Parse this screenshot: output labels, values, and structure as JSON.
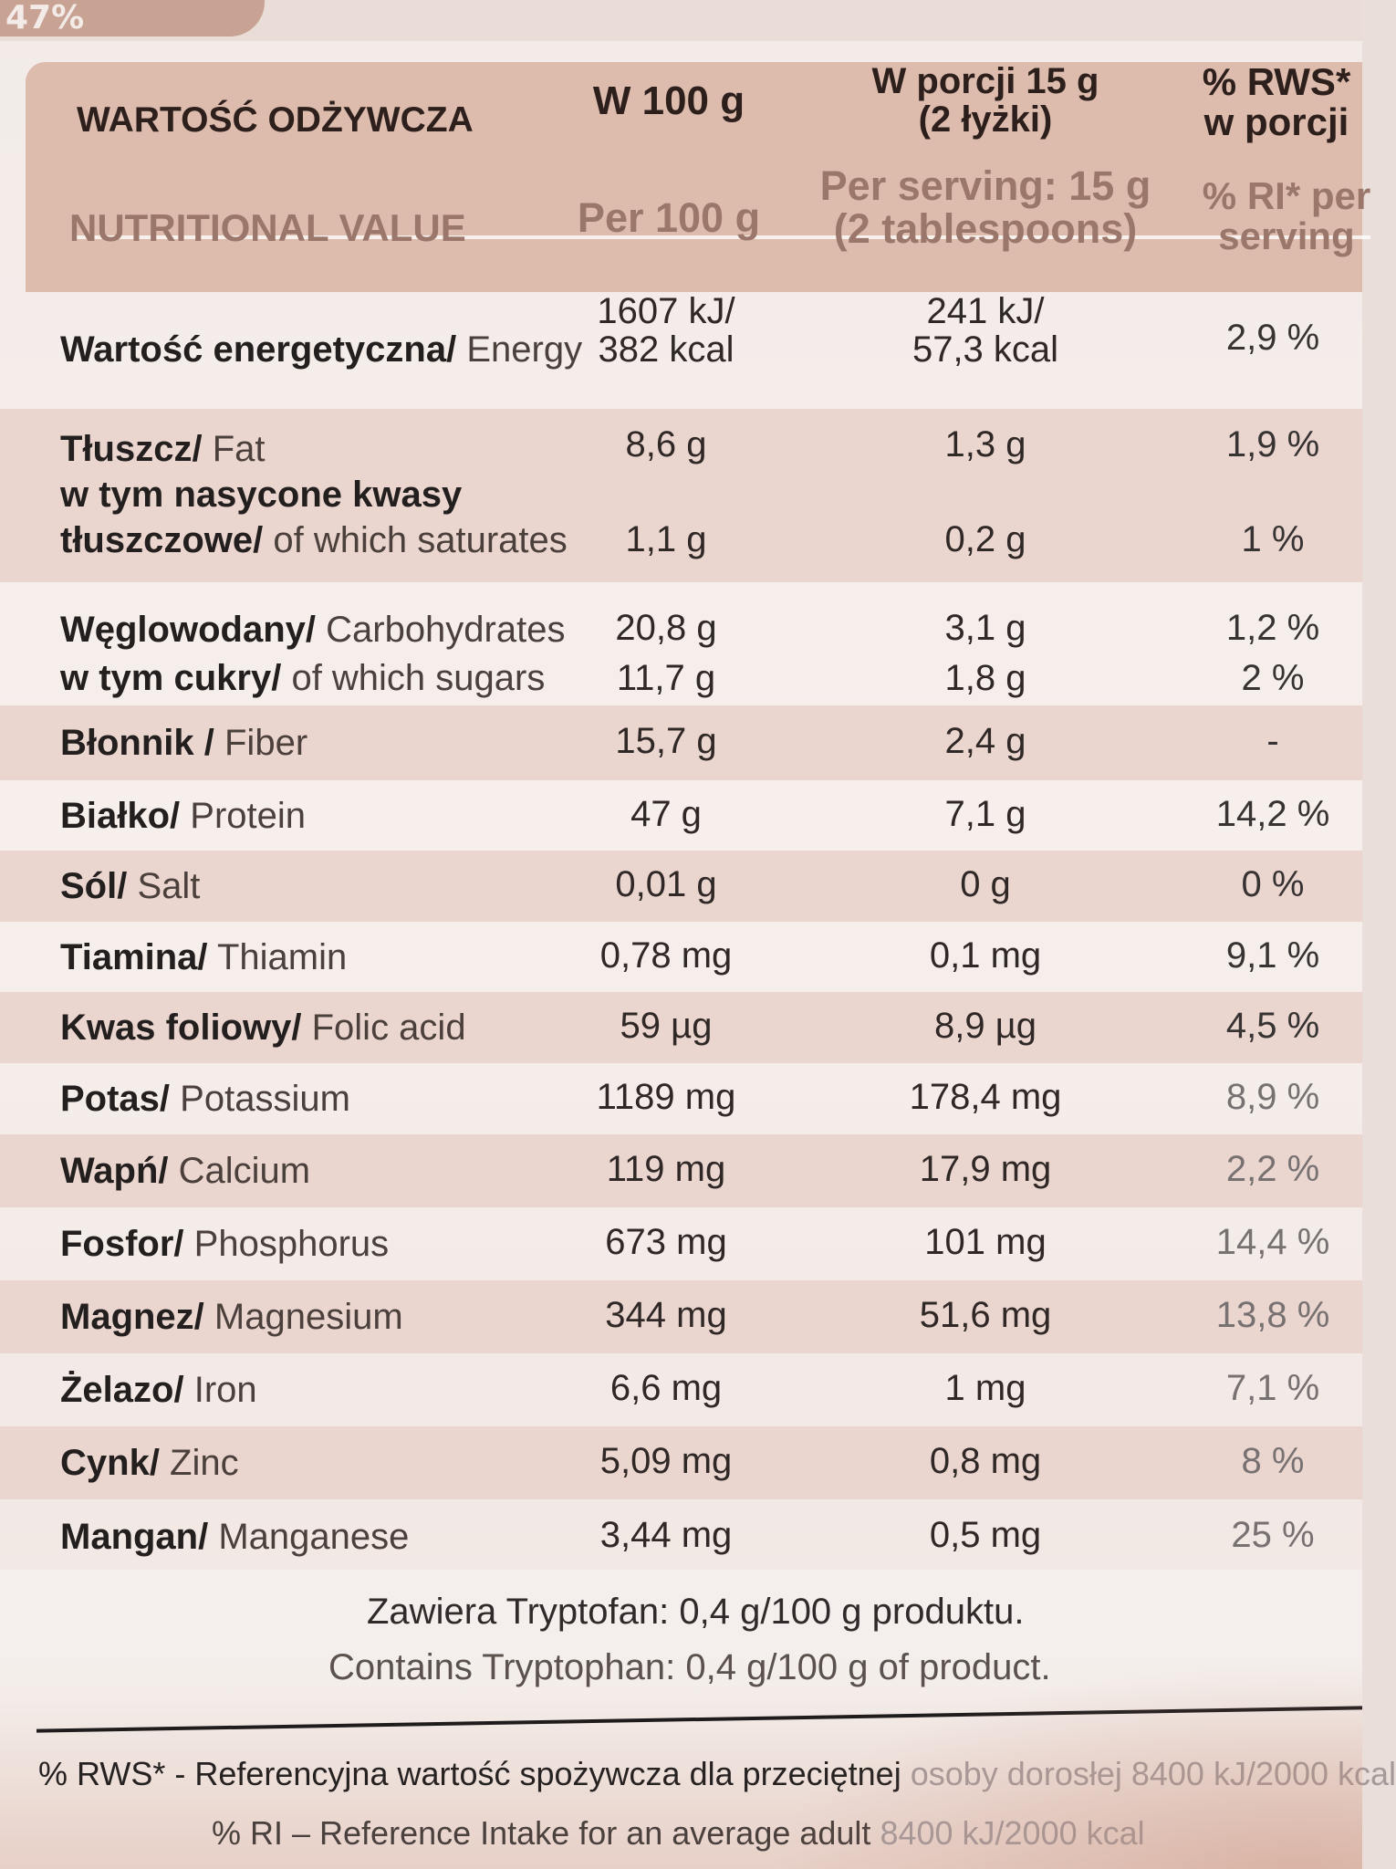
{
  "page": {
    "top_fragment": "47%"
  },
  "table": {
    "headers": {
      "pl": {
        "label": "WARTOŚĆ ODŻYWCZA",
        "per100": "W 100 g",
        "serving_line1": "W porcji 15 g",
        "serving_line2": "(2 łyżki)",
        "ri_line1": "% RWS*",
        "ri_line2": "w porcji"
      },
      "en": {
        "label": "NUTRITIONAL VALUE",
        "per100": "Per 100 g",
        "serving_line1": "Per serving: 15 g",
        "serving_line2": "(2 tablespoons)",
        "ri_line1": "% RI* per",
        "ri_line2": "serving"
      }
    },
    "rows": [
      {
        "label_pl": "Wartość energetyczna/",
        "label_en": " Energy",
        "per100_line1": "1607 kJ/",
        "per100_line2": "382 kcal",
        "serving_line1": "241 kJ/",
        "serving_line2": "57,3 kcal",
        "ri": "2,9 %"
      },
      {
        "label_pl": "Tłuszcz/",
        "label_en": " Fat",
        "per100": "8,6 g",
        "serving": "1,3 g",
        "ri": "1,9 %"
      },
      {
        "label_pl": "w tym nasycone kwasy",
        "label_en": "",
        "per100": "",
        "serving": "",
        "ri": ""
      },
      {
        "label_pl": "tłuszczowe/",
        "label_en": " of which saturates",
        "per100": "1,1 g",
        "serving": "0,2 g",
        "ri": "1 %"
      },
      {
        "label_pl": "Węglowodany/",
        "label_en": " Carbohydrates",
        "per100": "20,8 g",
        "serving": "3,1 g",
        "ri": "1,2 %"
      },
      {
        "label_pl": "w tym cukry/",
        "label_en": " of which sugars",
        "per100": "11,7 g",
        "serving": "1,8 g",
        "ri": "2 %"
      },
      {
        "label_pl": "Błonnik / ",
        "label_en": "Fiber",
        "per100": "15,7 g",
        "serving": "2,4 g",
        "ri": "-"
      },
      {
        "label_pl": "Białko/",
        "label_en": " Protein",
        "per100": "47 g",
        "serving": "7,1 g",
        "ri": "14,2 %"
      },
      {
        "label_pl": "Sól/",
        "label_en": " Salt",
        "per100": "0,01 g",
        "serving": "0 g",
        "ri": "0 %"
      },
      {
        "label_pl": "Tiamina/",
        "label_en": " Thiamin",
        "per100": "0,78 mg",
        "serving": "0,1 mg",
        "ri": "9,1 %"
      },
      {
        "label_pl": "Kwas foliowy/",
        "label_en": " Folic acid",
        "per100": "59 µg",
        "serving": "8,9 µg",
        "ri": "4,5 %"
      },
      {
        "label_pl": "Potas/",
        "label_en": " Potassium",
        "per100": "1189 mg",
        "serving": "178,4 mg",
        "ri": "8,9 %"
      },
      {
        "label_pl": "Wapń/",
        "label_en": " Calcium",
        "per100": "119 mg",
        "serving": "17,9 mg",
        "ri": "2,2 %"
      },
      {
        "label_pl": "Fosfor/",
        "label_en": " Phosphorus",
        "per100": "673 mg",
        "serving": "101 mg",
        "ri": "14,4 %"
      },
      {
        "label_pl": "Magnez/",
        "label_en": " Magnesium",
        "per100": "344 mg",
        "serving": "51,6 mg",
        "ri": "13,8 %"
      },
      {
        "label_pl": "Żelazo/",
        "label_en": " Iron",
        "per100": "6,6 mg",
        "serving": "1 mg",
        "ri": "7,1 %"
      },
      {
        "label_pl": "Cynk/",
        "label_en": " Zinc",
        "per100": "5,09 mg",
        "serving": "0,8 mg",
        "ri": "8 %"
      },
      {
        "label_pl": "Mangan/",
        "label_en": " Manganese",
        "per100": "3,44 mg",
        "serving": "0,5 mg",
        "ri": "25 %"
      }
    ]
  },
  "notes": {
    "tryptophan_pl": "Zawiera Tryptofan: 0,4 g/100 g produktu.",
    "tryptophan_en": "Contains Tryptophan: 0,4 g/100 g of product."
  },
  "footer": {
    "pl_prefix": "% RWS* - Referencyjna wartość spożywcza dla przeciętnej ",
    "pl_suffix": "osoby dorosłej 8400 kJ/2000 kcal",
    "en_prefix": "% RI – Reference Intake for an average adult ",
    "en_suffix": "8400 kJ/2000 kcal"
  }
}
